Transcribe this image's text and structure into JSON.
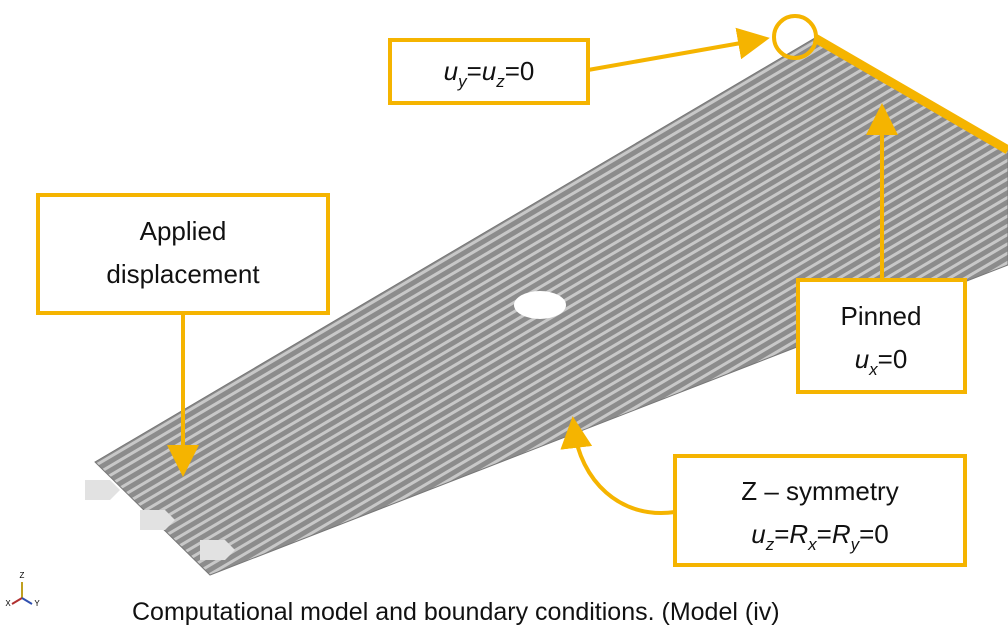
{
  "callouts": {
    "top": [
      "u",
      "y",
      "=",
      "u",
      "z",
      "=0"
    ],
    "applied": [
      "Applied",
      "displacement"
    ],
    "pinned": {
      "title": "Pinned",
      "eq": [
        "u",
        "x",
        "=0"
      ]
    },
    "symmetry": {
      "title": "Z – symmetry",
      "eq": [
        "u",
        "z",
        "=",
        "R",
        "x",
        "=",
        "R",
        "y",
        "=0"
      ]
    }
  },
  "triad": [
    "Z",
    "X",
    "Y"
  ],
  "caption": "Computational model and boundary conditions. (Model (iv)"
}
